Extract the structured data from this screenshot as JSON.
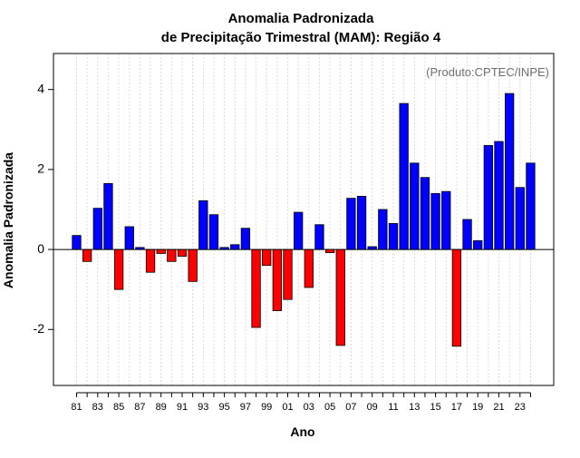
{
  "chart_data": {
    "type": "bar",
    "title": [
      "Anomalia Padronizada",
      "de Precipitação Trimestral (MAM): Região 4"
    ],
    "annotation": "(Produto:CPTEC/INPE)",
    "xlabel": "Ano",
    "ylabel": "Anomalia Padronizada",
    "ylim": [
      -3.4,
      4.9
    ],
    "yticks": [
      -2,
      0,
      2,
      4
    ],
    "x_tick_labels": [
      "81",
      "83",
      "85",
      "87",
      "89",
      "91",
      "93",
      "95",
      "97",
      "99",
      "01",
      "03",
      "05",
      "07",
      "09",
      "11",
      "13",
      "15",
      "17",
      "19",
      "21",
      "23"
    ],
    "categories": [
      "1981",
      "1982",
      "1983",
      "1984",
      "1985",
      "1986",
      "1987",
      "1988",
      "1989",
      "1990",
      "1991",
      "1992",
      "1993",
      "1994",
      "1995",
      "1996",
      "1997",
      "1998",
      "1999",
      "2000",
      "2001",
      "2002",
      "2003",
      "2004",
      "2005",
      "2006",
      "2007",
      "2008",
      "2009",
      "2010",
      "2011",
      "2012",
      "2013",
      "2014",
      "2015",
      "2016",
      "2017",
      "2018",
      "2019",
      "2020",
      "2021",
      "2022",
      "2023",
      "2024"
    ],
    "values": [
      0.35,
      -0.3,
      1.03,
      1.65,
      -1.0,
      0.57,
      0.05,
      -0.57,
      -0.1,
      -0.3,
      -0.17,
      -0.8,
      1.22,
      0.87,
      0.05,
      0.12,
      0.53,
      -1.95,
      -0.4,
      -1.53,
      -1.25,
      0.93,
      -0.95,
      0.62,
      -0.08,
      -2.4,
      1.28,
      1.33,
      0.07,
      1.0,
      0.65,
      3.65,
      2.16,
      1.8,
      1.4,
      1.45,
      -2.42,
      0.75,
      0.22,
      2.6,
      2.7,
      3.9,
      1.55,
      2.16
    ],
    "colors": {
      "positive": "#0000ff",
      "negative": "#ff0000",
      "grid": "#d3d3d3",
      "axis": "#000000",
      "annotation": "#6e6e6e"
    }
  }
}
